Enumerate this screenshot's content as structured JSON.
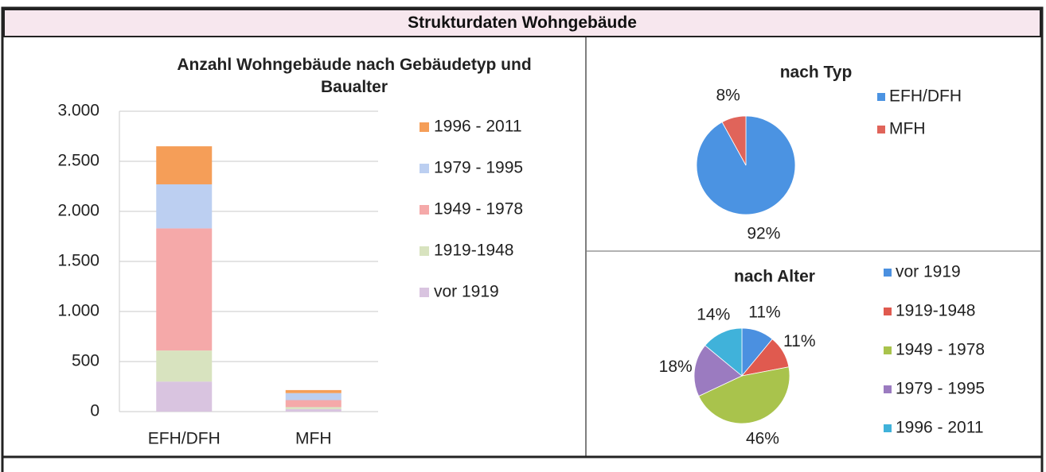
{
  "header": {
    "title": "Strukturdaten Wohngebäude"
  },
  "chart_data": [
    {
      "type": "bar",
      "stacked": true,
      "title": "Anzahl Wohngebäude nach Gebäudetyp und Baualter",
      "categories": [
        "EFH/DFH",
        "MFH"
      ],
      "series": [
        {
          "name": "vor 1919",
          "color": "#d9c4e0",
          "values": [
            300,
            25
          ]
        },
        {
          "name": "1919-1948",
          "color": "#d8e3bf",
          "values": [
            310,
            20
          ]
        },
        {
          "name": "1949 - 1978",
          "color": "#f5a9a9",
          "values": [
            1220,
            70
          ]
        },
        {
          "name": "1979 - 1995",
          "color": "#bccff1",
          "values": [
            440,
            70
          ]
        },
        {
          "name": "1996 - 2011",
          "color": "#f59e58",
          "values": [
            380,
            30
          ]
        }
      ],
      "ylim": [
        0,
        3000
      ],
      "yticks": [
        0,
        500,
        {
          "value": 1000,
          "label": "1.000"
        },
        {
          "value": 1500,
          "label": "1.500"
        },
        {
          "value": 2000,
          "label": "2.000"
        },
        {
          "value": 2500,
          "label": "2.500"
        },
        {
          "value": 3000,
          "label": "3.000"
        }
      ],
      "grid": true,
      "legend": "right"
    },
    {
      "type": "pie",
      "title": "nach Typ",
      "categories": [
        "EFH/DFH",
        "MFH"
      ],
      "values": [
        92,
        8
      ],
      "value_labels": [
        "92%",
        "8%"
      ],
      "colors": [
        "#4b93e2",
        "#e0645a"
      ],
      "legend": "right"
    },
    {
      "type": "pie",
      "title": "nach Alter",
      "categories": [
        "vor 1919",
        "1919-1948",
        "1949 - 1978",
        "1979 - 1995",
        "1996 - 2011"
      ],
      "values": [
        11,
        11,
        46,
        18,
        14
      ],
      "value_labels": [
        "11%",
        "11%",
        "46%",
        "18%",
        "14%"
      ],
      "colors": [
        "#4b90e0",
        "#e05a4f",
        "#a9c34c",
        "#9b7bc0",
        "#40b2da"
      ],
      "legend": "right"
    }
  ]
}
